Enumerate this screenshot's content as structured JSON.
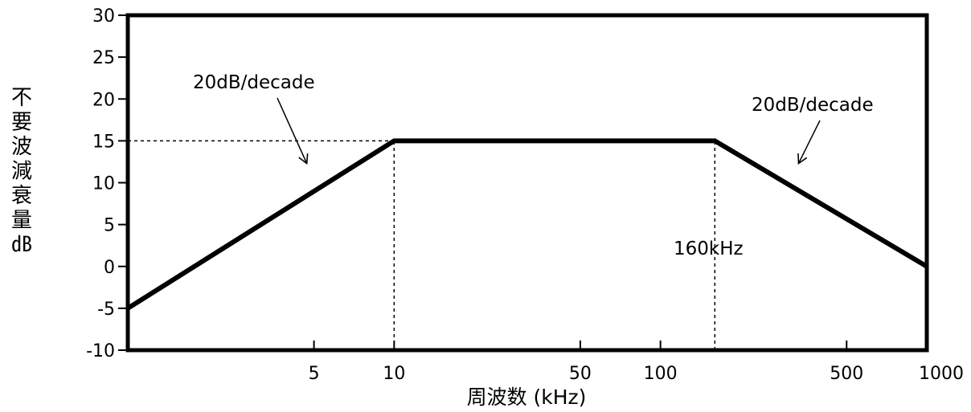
{
  "chart_data": {
    "type": "line",
    "xscale": "log",
    "xlim": [
      1,
      1000
    ],
    "ylim": [
      -10,
      30
    ],
    "grid": false,
    "legend": "none",
    "xlabel": "周波数 (kHz)",
    "ylabel": "不要波減衰量 ㏈",
    "x_ticks": [
      5,
      10,
      50,
      100,
      500,
      1000
    ],
    "x_tick_labels": [
      "5",
      "10",
      "50",
      "100",
      "500",
      "1000"
    ],
    "y_ticks": [
      -10,
      -5,
      0,
      5,
      10,
      15,
      20,
      25,
      30
    ],
    "y_tick_labels": [
      "-10",
      "-5",
      "0",
      "5",
      "10",
      "15",
      "20",
      "25",
      "30"
    ],
    "series": [
      {
        "x": [
          1,
          10,
          160,
          1000
        ],
        "y": [
          -5,
          15,
          15,
          0
        ],
        "color": "#000000"
      }
    ],
    "reference_lines": [
      {
        "kind": "horizontal",
        "y": 15,
        "x_from": 1,
        "x_to": 10
      },
      {
        "kind": "vertical",
        "x": 10,
        "y_from": -10,
        "y_to": 15
      },
      {
        "kind": "vertical",
        "x": 160,
        "y_from": -10,
        "y_to": 15
      }
    ],
    "annotations": [
      {
        "id": "ann-left-slope",
        "text": "20dB/decade",
        "arrow_to": [
          4.7,
          12.3
        ]
      },
      {
        "id": "ann-right-slope",
        "text": "20dB/decade",
        "arrow_to": [
          330,
          12.3
        ]
      },
      {
        "id": "ann-corner",
        "text": "160kHz"
      }
    ]
  }
}
